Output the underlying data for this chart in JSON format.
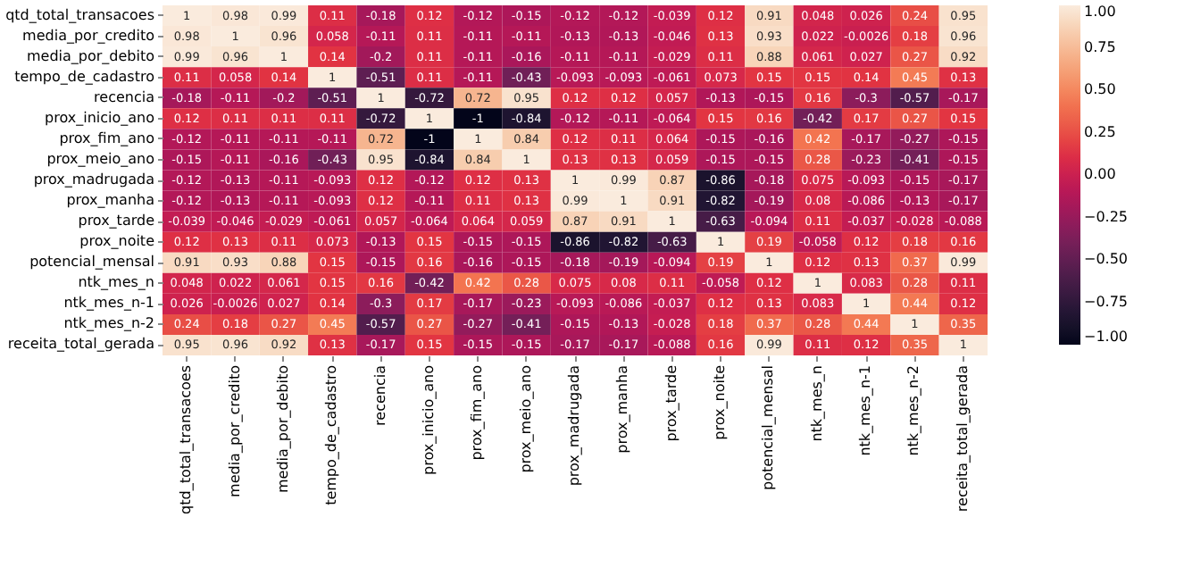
{
  "chart_data": {
    "type": "heatmap",
    "categories": [
      "qtd_total_transacoes",
      "media_por_credito",
      "media_por_debito",
      "tempo_de_cadastro",
      "recencia",
      "prox_inicio_ano",
      "prox_fim_ano",
      "prox_meio_ano",
      "prox_madrugada",
      "prox_manha",
      "prox_tarde",
      "prox_noite",
      "potencial_mensal",
      "ntk_mes_n",
      "ntk_mes_n-1",
      "ntk_mes_n-2",
      "receita_total_gerada"
    ],
    "y_categories": [
      "qtd_total_transacoes",
      "media_por_credito",
      "media_por_debito",
      "tempo_de_cadastro",
      "recencia",
      "prox_inicio_ano",
      "prox_fim_ano",
      "prox_meio_ano",
      "prox_madrugada",
      "prox_manha",
      "prox_tarde",
      "prox_noite",
      "potencial_mensal",
      "ntk_mes_n",
      "ntk_mes_n-1",
      "ntk_mes_n-2",
      "receita_total_gerada"
    ],
    "cells": [
      [
        1,
        0.98,
        0.99,
        0.11,
        -0.18,
        0.12,
        -0.12,
        -0.15,
        -0.12,
        -0.12,
        -0.039,
        0.12,
        0.91,
        0.048,
        0.026,
        0.24,
        0.95
      ],
      [
        0.98,
        1,
        0.96,
        0.058,
        -0.11,
        0.11,
        -0.11,
        -0.11,
        -0.13,
        -0.13,
        -0.046,
        0.13,
        0.93,
        0.022,
        -0.0026,
        0.18,
        0.96
      ],
      [
        0.99,
        0.96,
        1,
        0.14,
        -0.2,
        0.11,
        -0.11,
        -0.16,
        -0.11,
        -0.11,
        -0.029,
        0.11,
        0.88,
        0.061,
        0.027,
        0.27,
        0.92
      ],
      [
        0.11,
        0.058,
        0.14,
        1,
        -0.51,
        0.11,
        -0.11,
        -0.43,
        -0.093,
        -0.093,
        -0.061,
        0.073,
        0.15,
        0.15,
        0.14,
        0.45,
        0.13
      ],
      [
        -0.18,
        -0.11,
        -0.2,
        -0.51,
        1,
        -0.72,
        0.72,
        0.95,
        0.12,
        0.12,
        0.057,
        -0.13,
        -0.15,
        0.16,
        -0.3,
        -0.57,
        -0.17
      ],
      [
        0.12,
        0.11,
        0.11,
        0.11,
        -0.72,
        1,
        -1,
        -0.84,
        -0.12,
        -0.11,
        -0.064,
        0.15,
        0.16,
        -0.42,
        0.17,
        0.27,
        0.15
      ],
      [
        -0.12,
        -0.11,
        -0.11,
        -0.11,
        0.72,
        -1,
        1,
        0.84,
        0.12,
        0.11,
        0.064,
        -0.15,
        -0.16,
        0.42,
        -0.17,
        -0.27,
        -0.15
      ],
      [
        -0.15,
        -0.11,
        -0.16,
        -0.43,
        0.95,
        -0.84,
        0.84,
        1,
        0.13,
        0.13,
        0.059,
        -0.15,
        -0.15,
        0.28,
        -0.23,
        -0.41,
        -0.15
      ],
      [
        -0.12,
        -0.13,
        -0.11,
        -0.093,
        0.12,
        -0.12,
        0.12,
        0.13,
        1,
        0.99,
        0.87,
        -0.86,
        -0.18,
        0.075,
        -0.093,
        -0.15,
        -0.17
      ],
      [
        -0.12,
        -0.13,
        -0.11,
        -0.093,
        0.12,
        -0.11,
        0.11,
        0.13,
        0.99,
        1,
        0.91,
        -0.82,
        -0.19,
        0.08,
        -0.086,
        -0.13,
        -0.17
      ],
      [
        -0.039,
        -0.046,
        -0.029,
        -0.061,
        0.057,
        -0.064,
        0.064,
        0.059,
        0.87,
        0.91,
        1,
        -0.63,
        -0.094,
        0.11,
        -0.037,
        -0.028,
        -0.088
      ],
      [
        0.12,
        0.13,
        0.11,
        0.073,
        -0.13,
        0.15,
        -0.15,
        -0.15,
        -0.86,
        -0.82,
        -0.63,
        1,
        0.19,
        -0.058,
        0.12,
        0.18,
        0.16
      ],
      [
        0.91,
        0.93,
        0.88,
        0.15,
        -0.15,
        0.16,
        -0.16,
        -0.15,
        -0.18,
        -0.19,
        -0.094,
        0.19,
        1,
        0.12,
        0.13,
        0.37,
        0.99
      ],
      [
        0.048,
        0.022,
        0.061,
        0.15,
        0.16,
        -0.42,
        0.42,
        0.28,
        0.075,
        0.08,
        0.11,
        -0.058,
        0.12,
        1,
        0.083,
        0.28,
        0.11
      ],
      [
        0.026,
        -0.0026,
        0.027,
        0.14,
        -0.3,
        0.17,
        -0.17,
        -0.23,
        -0.093,
        -0.086,
        -0.037,
        0.12,
        0.13,
        0.083,
        1,
        0.44,
        0.12
      ],
      [
        0.24,
        0.18,
        0.27,
        0.45,
        -0.57,
        0.27,
        -0.27,
        -0.41,
        -0.15,
        -0.13,
        -0.028,
        0.18,
        0.37,
        0.28,
        0.44,
        1,
        0.35
      ],
      [
        0.95,
        0.96,
        0.92,
        0.13,
        -0.17,
        0.15,
        -0.15,
        -0.15,
        -0.17,
        -0.17,
        -0.088,
        0.16,
        0.99,
        0.11,
        0.12,
        0.35,
        1
      ]
    ],
    "clim": [
      -1,
      1
    ],
    "cticks": [
      {
        "value": -1,
        "label": "−1.00"
      },
      {
        "value": -0.75,
        "label": "−0.75"
      },
      {
        "value": -0.5,
        "label": "−0.50"
      },
      {
        "value": -0.25,
        "label": "−0.25"
      },
      {
        "value": 0,
        "label": "0.00"
      },
      {
        "value": 0.25,
        "label": "0.25"
      },
      {
        "value": 0.5,
        "label": "0.50"
      },
      {
        "value": 0.75,
        "label": "0.75"
      },
      {
        "value": 1,
        "label": "1.00"
      }
    ],
    "data_labels": true
  }
}
